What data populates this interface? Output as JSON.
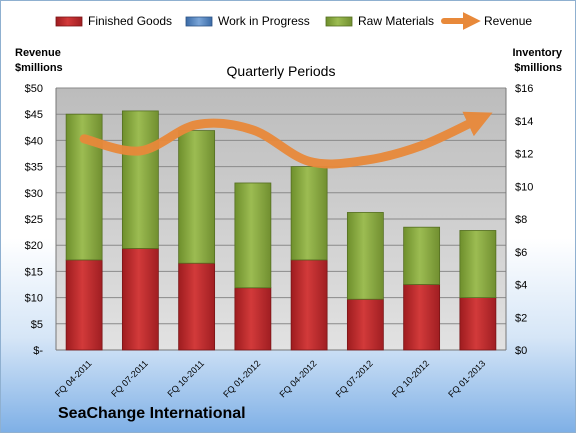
{
  "chart_data": {
    "type": "bar+line",
    "title": "Quarterly Periods",
    "company": "SeaChange International",
    "left_axis_label": [
      "Revenue",
      "$millions"
    ],
    "right_axis_label": [
      "Inventory",
      "$millions"
    ],
    "left_ticks": [
      "$-",
      "$5",
      "$10",
      "$15",
      "$20",
      "$25",
      "$30",
      "$35",
      "$40",
      "$45",
      "$50"
    ],
    "right_ticks": [
      "$0",
      "$2",
      "$4",
      "$6",
      "$8",
      "$10",
      "$12",
      "$14",
      "$16"
    ],
    "left_ylim": [
      0,
      50
    ],
    "right_ylim": [
      0,
      16
    ],
    "categories": [
      "FQ 04-2011",
      "FQ 07-2011",
      "FQ 10-2011",
      "FQ 01-2012",
      "FQ 04-2012",
      "FQ 07-2012",
      "FQ 10-2012",
      "FQ 01-2013"
    ],
    "stacked_series": [
      {
        "name": "Finished Goods",
        "color": "#c0282b",
        "values": [
          5.5,
          6.2,
          5.3,
          3.8,
          5.5,
          3.1,
          4.0,
          3.2
        ]
      },
      {
        "name": "Work in Progress",
        "color": "#4f81bd",
        "values": [
          0,
          0,
          0,
          0,
          0,
          0,
          0,
          0
        ]
      },
      {
        "name": "Raw Materials",
        "color": "#8cae3e",
        "values": [
          8.9,
          8.4,
          8.1,
          6.4,
          5.7,
          5.3,
          3.5,
          4.1
        ]
      }
    ],
    "line_series": {
      "name": "Revenue",
      "color": "#e8893a",
      "values": [
        40.3,
        38.0,
        43.0,
        42.0,
        36.0,
        36.2,
        39.0,
        44.0
      ]
    },
    "grid": true
  }
}
